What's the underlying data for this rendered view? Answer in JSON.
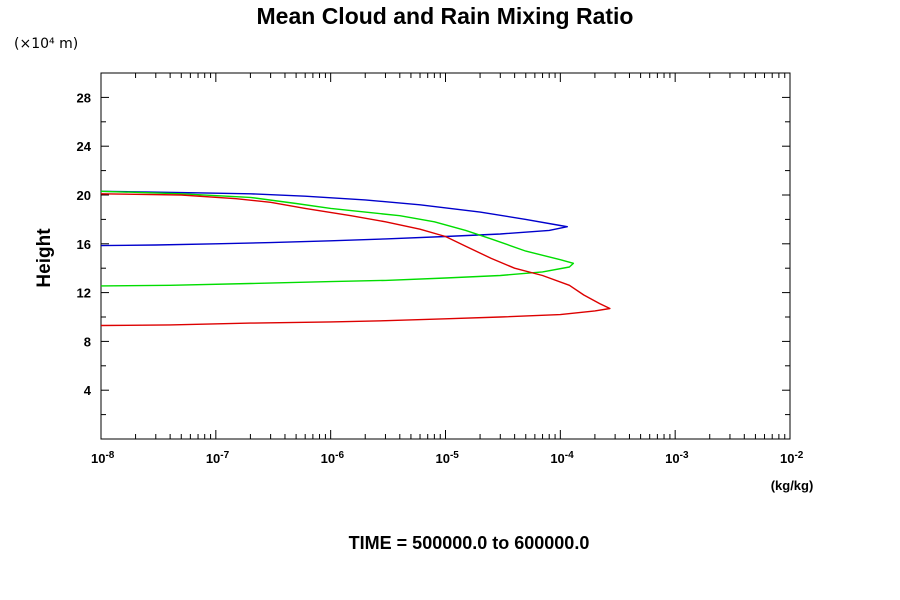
{
  "chart_data": {
    "type": "line",
    "title": "Mean Cloud and Rain Mixing Ratio",
    "y_unit": "(×10⁴ m)",
    "ylabel": "Height",
    "xlabel": "(kg/kg)",
    "footer": "TIME = 500000.0 to 600000.0",
    "x_scale": "log",
    "xlim": [
      1e-08,
      0.01
    ],
    "ylim": [
      0,
      30
    ],
    "grid": false,
    "yticks": [
      {
        "value": 4,
        "label": "4"
      },
      {
        "value": 8,
        "label": "8"
      },
      {
        "value": 12,
        "label": "12"
      },
      {
        "value": 16,
        "label": "16"
      },
      {
        "value": 20,
        "label": "20"
      },
      {
        "value": 24,
        "label": "24"
      },
      {
        "value": 28,
        "label": "28"
      }
    ],
    "xticks": [
      {
        "value": 1e-08,
        "base": "10",
        "exp": "-8"
      },
      {
        "value": 1e-07,
        "base": "10",
        "exp": "-7"
      },
      {
        "value": 1e-06,
        "base": "10",
        "exp": "-6"
      },
      {
        "value": 1e-05,
        "base": "10",
        "exp": "-5"
      },
      {
        "value": 0.0001,
        "base": "10",
        "exp": "-4"
      },
      {
        "value": 0.001,
        "base": "10",
        "exp": "-3"
      },
      {
        "value": 0.01,
        "base": "10",
        "exp": "-2"
      }
    ],
    "series": [
      {
        "color": "#0000cc",
        "points": [
          [
            1e-08,
            20.3
          ],
          [
            5e-08,
            20.2
          ],
          [
            2e-07,
            20.1
          ],
          [
            6e-07,
            19.9
          ],
          [
            2e-06,
            19.6
          ],
          [
            6e-06,
            19.2
          ],
          [
            2e-05,
            18.6
          ],
          [
            5e-05,
            18.0
          ],
          [
            0.0001,
            17.5
          ],
          [
            0.000115,
            17.4
          ],
          [
            8e-05,
            17.1
          ],
          [
            3e-05,
            16.8
          ],
          [
            1e-05,
            16.6
          ],
          [
            3e-06,
            16.4
          ],
          [
            1e-06,
            16.25
          ],
          [
            3e-07,
            16.1
          ],
          [
            1e-07,
            16.0
          ],
          [
            3e-08,
            15.9
          ],
          [
            1e-08,
            15.85
          ]
        ]
      },
      {
        "color": "#00dd00",
        "points": [
          [
            1e-08,
            20.3
          ],
          [
            5e-08,
            20.1
          ],
          [
            2e-07,
            19.8
          ],
          [
            5e-07,
            19.3
          ],
          [
            1e-06,
            18.9
          ],
          [
            2e-06,
            18.6
          ],
          [
            4e-06,
            18.3
          ],
          [
            8e-06,
            17.8
          ],
          [
            1.5e-05,
            17.1
          ],
          [
            2.5e-05,
            16.4
          ],
          [
            5e-05,
            15.4
          ],
          [
            0.0001,
            14.7
          ],
          [
            0.00013,
            14.4
          ],
          [
            0.00012,
            14.1
          ],
          [
            7e-05,
            13.7
          ],
          [
            3e-05,
            13.4
          ],
          [
            1e-05,
            13.2
          ],
          [
            3e-06,
            13.0
          ],
          [
            1e-06,
            12.9
          ],
          [
            2e-07,
            12.75
          ],
          [
            4e-08,
            12.6
          ],
          [
            1e-08,
            12.55
          ]
        ]
      },
      {
        "color": "#dd0000",
        "points": [
          [
            1e-08,
            20.1
          ],
          [
            5e-08,
            20.0
          ],
          [
            1.5e-07,
            19.7
          ],
          [
            3e-07,
            19.4
          ],
          [
            6e-07,
            18.9
          ],
          [
            1.5e-06,
            18.3
          ],
          [
            3e-06,
            17.8
          ],
          [
            6e-06,
            17.2
          ],
          [
            1e-05,
            16.6
          ],
          [
            1.5e-05,
            15.8
          ],
          [
            2.5e-05,
            14.8
          ],
          [
            4e-05,
            14.0
          ],
          [
            7e-05,
            13.4
          ],
          [
            0.00012,
            12.6
          ],
          [
            0.00016,
            11.8
          ],
          [
            0.00022,
            11.1
          ],
          [
            0.00027,
            10.7
          ],
          [
            0.0002,
            10.5
          ],
          [
            0.0001,
            10.2
          ],
          [
            3e-05,
            10.0
          ],
          [
            1e-05,
            9.85
          ],
          [
            3e-06,
            9.7
          ],
          [
            1e-06,
            9.6
          ],
          [
            2e-07,
            9.5
          ],
          [
            4e-08,
            9.35
          ],
          [
            1e-08,
            9.3
          ]
        ]
      }
    ]
  }
}
